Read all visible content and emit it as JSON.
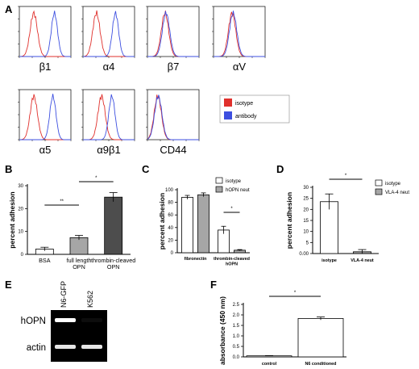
{
  "colors": {
    "isotype": "#e0302c",
    "antibody": "#3d4fe0",
    "gel_bg": "#000000",
    "gel_band": "#ffffff"
  },
  "panel_letters": {
    "A": "A",
    "B": "B",
    "C": "C",
    "D": "D",
    "E": "E",
    "F": "F"
  },
  "panel_a": {
    "legend": {
      "isotype": "isotype",
      "antibody": "antibody"
    },
    "histograms": [
      {
        "marker": "β1",
        "iso_center": 0.28,
        "ab_center": 0.68,
        "overlap": false
      },
      {
        "marker": "α4",
        "iso_center": 0.26,
        "ab_center": 0.63,
        "overlap": false
      },
      {
        "marker": "β7",
        "iso_center": 0.34,
        "ab_center": 0.36,
        "overlap": true
      },
      {
        "marker": "αV",
        "iso_center": 0.36,
        "ab_center": 0.38,
        "overlap": true
      },
      {
        "marker": "α5",
        "iso_center": 0.28,
        "ab_center": 0.65,
        "overlap": false
      },
      {
        "marker": "α9β1",
        "iso_center": 0.36,
        "ab_center": 0.56,
        "overlap": false
      },
      {
        "marker": "CD44",
        "iso_center": 0.2,
        "ab_center": 0.21,
        "overlap": true
      }
    ]
  },
  "chart_data": [
    {
      "panel": "B",
      "type": "bar",
      "ylabel": "percent adhesion",
      "ylim": [
        0,
        30
      ],
      "yticks": [
        0,
        10,
        20,
        30
      ],
      "categories": [
        "BSA",
        "full length\nOPN",
        "thrombin-cleaved\nOPN"
      ],
      "values": [
        2.3,
        7.3,
        25.0
      ],
      "errors": [
        0.8,
        1.0,
        2.0
      ],
      "bar_colors": [
        "#ffffff",
        "#a6a6a6",
        "#4d4d4d"
      ],
      "significance": [
        "**",
        "*"
      ]
    },
    {
      "panel": "C",
      "type": "bar",
      "ylabel": "percent adhesion",
      "ylim": [
        0,
        100
      ],
      "yticks": [
        0,
        20,
        40,
        60,
        80,
        100
      ],
      "categories": [
        "fibronectin",
        "thrombin-cleaved\nhOPN"
      ],
      "series": [
        {
          "name": "isotype",
          "values": [
            88,
            36
          ],
          "errors": [
            3,
            6
          ],
          "color": "#ffffff"
        },
        {
          "name": "hOPN neut",
          "values": [
            92,
            4
          ],
          "errors": [
            3,
            1
          ],
          "color": "#a6a6a6"
        }
      ],
      "significance": [
        "*"
      ]
    },
    {
      "panel": "D",
      "type": "bar",
      "ylabel": "percent adhesion",
      "ylim": [
        0,
        30
      ],
      "yticks": [
        0,
        5,
        10,
        15,
        20,
        25,
        30
      ],
      "ytick_labels": [
        "0.00",
        "5",
        "10",
        "15",
        "20",
        "25",
        "30"
      ],
      "categories": [
        "isotype",
        "VLA-4 neut"
      ],
      "values": [
        23.5,
        0.8
      ],
      "errors": [
        3.5,
        1.0
      ],
      "bar_colors": [
        "#ffffff",
        "#a6a6a6"
      ],
      "legend": [
        "isotype",
        "VLA-4 neut"
      ],
      "significance": [
        "*"
      ]
    },
    {
      "panel": "F",
      "type": "bar",
      "ylabel": "absorbance (450 nm)",
      "ylim": [
        0,
        2.5
      ],
      "yticks": [
        0.0,
        0.5,
        1.0,
        1.5,
        2.0,
        2.5
      ],
      "ytick_labels": [
        "0.0",
        "0.5",
        "1.0",
        "1.5",
        "2.0",
        "2.5"
      ],
      "categories": [
        "control",
        "N6 conditioned"
      ],
      "values": [
        0.05,
        1.83
      ],
      "errors": [
        0.01,
        0.07
      ],
      "bar_colors": [
        "#ffffff",
        "#ffffff"
      ],
      "significance": [
        "*"
      ]
    }
  ],
  "panel_e": {
    "lanes": [
      "N6-GFP",
      "K562"
    ],
    "rows": [
      {
        "label": "hOPN",
        "bands": [
          1.0,
          0.05
        ]
      },
      {
        "label": "actin",
        "bands": [
          0.9,
          0.9
        ]
      }
    ]
  }
}
